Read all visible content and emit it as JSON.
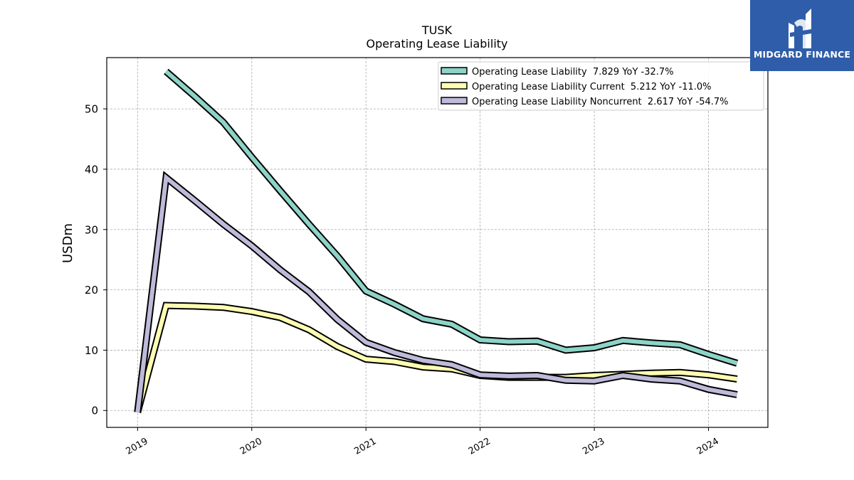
{
  "logo": {
    "text": "MIDGARD FINANCE",
    "icon": "midgard-m-mark",
    "background": "#2f5daa"
  },
  "chart_data": {
    "type": "line",
    "title": "TUSK",
    "subtitle": "Operating Lease Liability",
    "ylabel": "USDm",
    "xlabel": "",
    "ylim": [
      -2.8,
      58.5
    ],
    "xlim": [
      2018.73,
      2024.52
    ],
    "yticks": [
      0,
      10,
      20,
      30,
      40,
      50
    ],
    "xticks": [
      {
        "value": 2019,
        "label": "2019"
      },
      {
        "value": 2020,
        "label": "2020"
      },
      {
        "value": 2021,
        "label": "2021"
      },
      {
        "value": 2022,
        "label": "2022"
      },
      {
        "value": 2023,
        "label": "2023"
      },
      {
        "value": 2024,
        "label": "2024"
      }
    ],
    "grid": true,
    "legend_position": "top-right",
    "series": [
      {
        "name": "Operating Lease Liability",
        "legend_label": "Operating Lease Liability  7.829 YoY -32.7%",
        "color": "#8dd3c7",
        "x": [
          2019.25,
          2019.5,
          2019.75,
          2020.0,
          2020.25,
          2020.5,
          2020.75,
          2021.0,
          2021.25,
          2021.5,
          2021.75,
          2022.0,
          2022.25,
          2022.5,
          2022.75,
          2023.0,
          2023.25,
          2023.5,
          2023.75,
          2024.0,
          2024.25
        ],
        "values": [
          56.2,
          52.1,
          47.8,
          42.0,
          36.4,
          30.9,
          25.6,
          19.8,
          17.6,
          15.2,
          14.3,
          11.7,
          11.4,
          11.5,
          10.0,
          10.4,
          11.6,
          11.2,
          10.9,
          9.3,
          7.829
        ]
      },
      {
        "name": "Operating Lease Liability Current",
        "legend_label": "Operating Lease Liability Current  5.212 YoY -11.0%",
        "color": "#ffffb3",
        "x": [
          2019.0,
          2019.25,
          2019.5,
          2019.75,
          2020.0,
          2020.25,
          2020.5,
          2020.75,
          2021.0,
          2021.25,
          2021.5,
          2021.75,
          2022.0,
          2022.25,
          2022.5,
          2022.75,
          2023.0,
          2023.25,
          2023.5,
          2023.75,
          2024.0,
          2024.25
        ],
        "values": [
          -0.3,
          17.4,
          17.3,
          17.1,
          16.4,
          15.4,
          13.4,
          10.6,
          8.5,
          8.1,
          7.2,
          6.9,
          5.8,
          5.5,
          5.5,
          5.5,
          5.8,
          6.0,
          6.2,
          6.3,
          5.9,
          5.212
        ]
      },
      {
        "name": "Operating Lease Liability Noncurrent",
        "legend_label": "Operating Lease Liability Noncurrent  2.617 YoY -54.7%",
        "color": "#bebada",
        "x": [
          2019.0,
          2019.25,
          2019.5,
          2019.75,
          2020.0,
          2020.25,
          2020.5,
          2020.75,
          2021.0,
          2021.25,
          2021.5,
          2021.75,
          2022.0,
          2022.25,
          2022.5,
          2022.75,
          2023.0,
          2023.25,
          2023.5,
          2023.75,
          2024.0,
          2024.25
        ],
        "values": [
          -0.3,
          38.6,
          34.8,
          30.9,
          27.3,
          23.3,
          19.7,
          15.1,
          11.3,
          9.6,
          8.3,
          7.6,
          5.9,
          5.7,
          5.8,
          5.0,
          4.9,
          5.8,
          5.2,
          4.9,
          3.5,
          2.617
        ]
      }
    ]
  }
}
